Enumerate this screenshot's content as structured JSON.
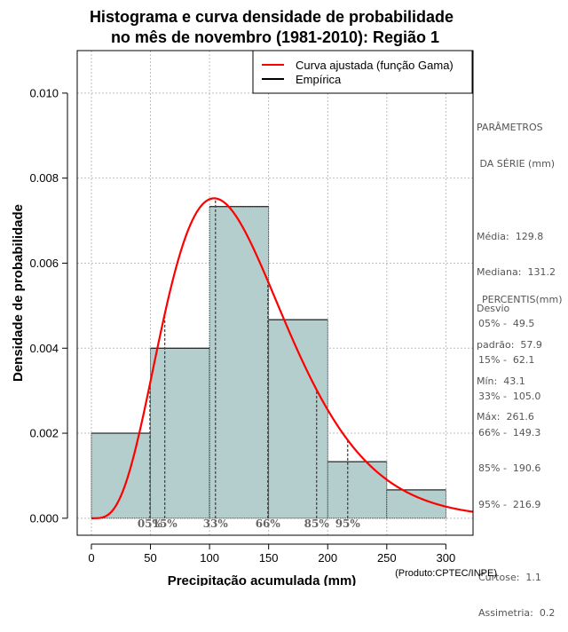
{
  "chart_data": {
    "type": "histogram",
    "title_lines": [
      "Histograma e curva densidade de probabilidade",
      "no mês de novembro (1981-2010): Região 1"
    ],
    "xlabel": "Precipitação acumulada (mm)",
    "ylabel": "Densidade de probabilidade",
    "xlim": [
      -12,
      323
    ],
    "ylim": [
      -0.0004,
      0.011
    ],
    "x_ticks": [
      0,
      50,
      100,
      150,
      200,
      250,
      300
    ],
    "y_ticks": [
      0.0,
      0.002,
      0.004,
      0.006,
      0.008,
      0.01
    ],
    "y_tick_labels": [
      "0.000",
      "0.002",
      "0.004",
      "0.006",
      "0.008",
      "0.010"
    ],
    "bins": [
      {
        "start": 0,
        "end": 50,
        "density": 0.002
      },
      {
        "start": 50,
        "end": 100,
        "density": 0.004
      },
      {
        "start": 100,
        "end": 150,
        "density": 0.00733
      },
      {
        "start": 150,
        "end": 200,
        "density": 0.00467
      },
      {
        "start": 200,
        "end": 250,
        "density": 0.00133
      },
      {
        "start": 250,
        "end": 300,
        "density": 0.000667
      }
    ],
    "gamma_fit": {
      "shape": 5.0,
      "scale": 25.96
    },
    "percentile_markers": [
      {
        "label": "05%",
        "value": 49.5
      },
      {
        "label": "15%",
        "value": 62.1
      },
      {
        "label": "33%",
        "value": 105.0
      },
      {
        "label": "66%",
        "value": 149.3
      },
      {
        "label": "85%",
        "value": 190.6
      },
      {
        "label": "95%",
        "value": 216.9
      }
    ],
    "legend": [
      {
        "label": "Curva ajustada (função Gama)",
        "color": "#ff0000"
      },
      {
        "label": "Empírica",
        "color": "#000000"
      }
    ],
    "colors": {
      "bar_fill": "#b4cdcd",
      "curve": "#ff0000",
      "grid": "#bebebe",
      "marker_label": "#666666"
    }
  },
  "side_panel": {
    "params_heading_1": "PARÂMETROS",
    "params_heading_2": " DA SÉRIE (mm)",
    "media": "Média:  129.8",
    "mediana": "Mediana:  131.2",
    "desvio_1": "Desvio",
    "desvio_2": "padrão:  57.9",
    "min": "Mín:  43.1",
    "max": "Máx:  261.6",
    "percentis_heading": "PERCENTIS(mm)",
    "p05": "05% -  49.5",
    "p15": "15% -  62.1",
    "p33": "33% -  105.0",
    "p66": "66% -  149.3",
    "p85": "85% -  190.6",
    "p95": "95% -  216.9",
    "curtose": "Curtose:  1.1",
    "assimetria": "Assimetria:  0.2"
  },
  "credit": "(Produto:CPTEC/INPE)"
}
